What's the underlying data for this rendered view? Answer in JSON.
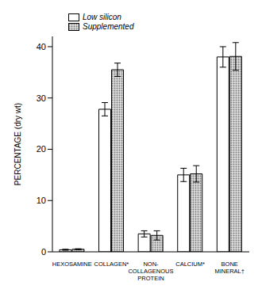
{
  "chart_data": {
    "type": "bar",
    "y_label": "PERCENTAGE (dry wt)",
    "categories": [
      "HEXOSAMINE",
      "COLLAGEN*",
      "NON-COLLAGENOUS PROTEIN",
      "CALCIUM*",
      "BONE MINERAL†"
    ],
    "series": [
      {
        "name": "Low silicon",
        "color": "#ffffff",
        "values": [
          0.4,
          27.8,
          3.5,
          15.0,
          38.0
        ],
        "errors": [
          0.1,
          1.3,
          0.6,
          1.3,
          2.0
        ]
      },
      {
        "name": "Supplemented",
        "color": "#777777",
        "values": [
          0.5,
          35.5,
          3.2,
          15.2,
          38.1
        ],
        "errors": [
          0.1,
          1.3,
          0.9,
          1.6,
          2.7
        ]
      }
    ],
    "ylim": [
      0,
      42
    ],
    "yticks": [
      0,
      10,
      20,
      30,
      40
    ],
    "grid": false,
    "legend": "top"
  }
}
